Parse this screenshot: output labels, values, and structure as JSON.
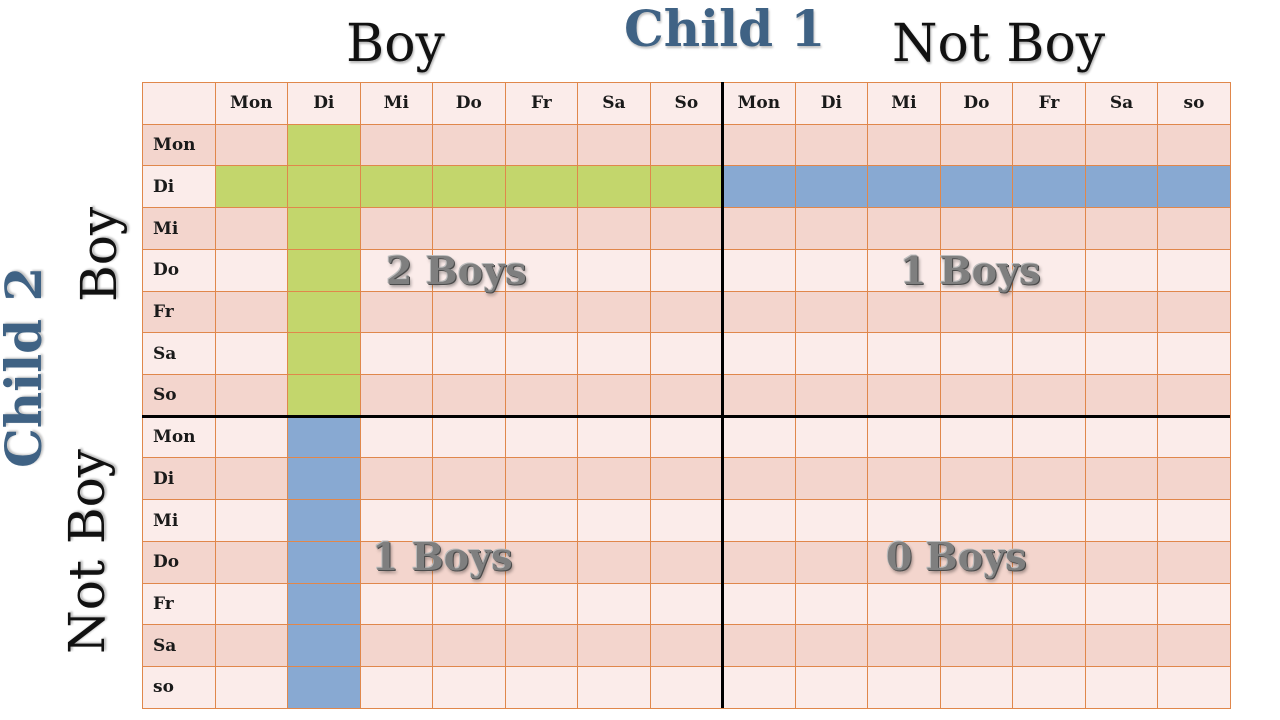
{
  "title_top": "Child 1",
  "title_side": "Child 2",
  "col_groups": [
    "Boy",
    "Not Boy"
  ],
  "row_groups": [
    "Boy",
    "Not Boy"
  ],
  "col_headers": [
    "Mon",
    "Di",
    "Mi",
    "Do",
    "Fr",
    "Sa",
    "So",
    "Mon",
    "Di",
    "Mi",
    "Do",
    "Fr",
    "Sa",
    "so"
  ],
  "row_headers": [
    "Mon",
    "Di",
    "Mi",
    "Do",
    "Fr",
    "Sa",
    "So",
    "Mon",
    "Di",
    "Mi",
    "Do",
    "Fr",
    "Sa",
    "so"
  ],
  "quadrants": {
    "top_left": "2 Boys",
    "top_right": "1 Boys",
    "bottom_left": "1 Boys",
    "bottom_right": "0 Boys"
  },
  "colors": {
    "highlight_green": "#c3d66c",
    "highlight_blue": "#88a9d2",
    "cell_light": "#fbecea",
    "cell_dark": "#f3d5cd",
    "grid_line": "#e0874b",
    "title_blue": "#3f6284"
  }
}
